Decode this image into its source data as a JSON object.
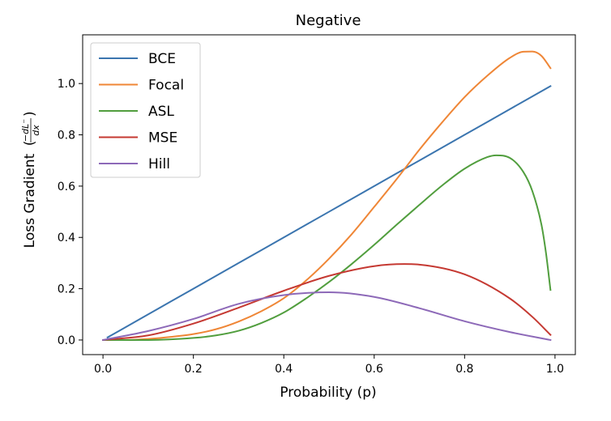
{
  "chart_data": {
    "type": "line",
    "title": "Negative",
    "xlabel": "Probability (p)",
    "ylabel": "Loss Gradient",
    "ylabel_math": {
      "numerator": "−dL⁻",
      "denominator": "dx"
    },
    "xlim": [
      -0.045,
      1.045
    ],
    "ylim": [
      -0.057,
      1.19
    ],
    "xticks": [
      0.0,
      0.2,
      0.4,
      0.6,
      0.8,
      1.0
    ],
    "xtick_labels": [
      "0.0",
      "0.2",
      "0.4",
      "0.6",
      "0.8",
      "1.0"
    ],
    "yticks": [
      0.0,
      0.2,
      0.4,
      0.6,
      0.8,
      1.0
    ],
    "ytick_labels": [
      "0.0",
      "0.2",
      "0.4",
      "0.6",
      "0.8",
      "1.0"
    ],
    "grid": false,
    "legend_position": "top-left",
    "series": [
      {
        "name": "BCE",
        "color": "#3b75af",
        "x": [
          0.01,
          0.1,
          0.2,
          0.3,
          0.4,
          0.5,
          0.6,
          0.7,
          0.8,
          0.9,
          0.99
        ],
        "y": [
          0.01,
          0.1,
          0.2,
          0.3,
          0.4,
          0.5,
          0.6,
          0.7,
          0.8,
          0.9,
          0.99
        ]
      },
      {
        "name": "Focal",
        "color": "#ef8636",
        "x": [
          0.0,
          0.05,
          0.1,
          0.15,
          0.2,
          0.25,
          0.3,
          0.35,
          0.4,
          0.45,
          0.5,
          0.55,
          0.6,
          0.65,
          0.7,
          0.75,
          0.8,
          0.85,
          0.9,
          0.93,
          0.95,
          0.97,
          0.99
        ],
        "y": [
          0.0,
          0.0,
          0.004,
          0.012,
          0.023,
          0.042,
          0.072,
          0.112,
          0.163,
          0.233,
          0.317,
          0.412,
          0.519,
          0.628,
          0.742,
          0.848,
          0.947,
          1.03,
          1.1,
          1.124,
          1.125,
          1.108,
          1.06
        ]
      },
      {
        "name": "ASL",
        "color": "#519e3e",
        "x": [
          0.0,
          0.1,
          0.2,
          0.25,
          0.3,
          0.35,
          0.4,
          0.45,
          0.5,
          0.55,
          0.6,
          0.65,
          0.7,
          0.75,
          0.8,
          0.85,
          0.87,
          0.9,
          0.93,
          0.95,
          0.97,
          0.98,
          0.99
        ],
        "y": [
          0.0,
          0.0,
          0.008,
          0.018,
          0.036,
          0.066,
          0.107,
          0.163,
          0.226,
          0.296,
          0.371,
          0.45,
          0.527,
          0.602,
          0.668,
          0.713,
          0.72,
          0.71,
          0.655,
          0.58,
          0.45,
          0.34,
          0.195
        ]
      },
      {
        "name": "MSE",
        "color": "#c53932",
        "x": [
          0.0,
          0.1,
          0.2,
          0.3,
          0.4,
          0.5,
          0.6,
          0.667,
          0.7,
          0.8,
          0.9,
          0.95,
          0.99
        ],
        "y": [
          0.0,
          0.018,
          0.064,
          0.126,
          0.192,
          0.25,
          0.288,
          0.296,
          0.294,
          0.256,
          0.162,
          0.09,
          0.02
        ]
      },
      {
        "name": "Hill",
        "color": "#8d69b8",
        "x": [
          0.0,
          0.1,
          0.2,
          0.3,
          0.4,
          0.5,
          0.6,
          0.7,
          0.8,
          0.9,
          0.99
        ],
        "y": [
          0.0,
          0.035,
          0.082,
          0.141,
          0.175,
          0.186,
          0.168,
          0.124,
          0.073,
          0.031,
          0.0
        ]
      }
    ]
  }
}
